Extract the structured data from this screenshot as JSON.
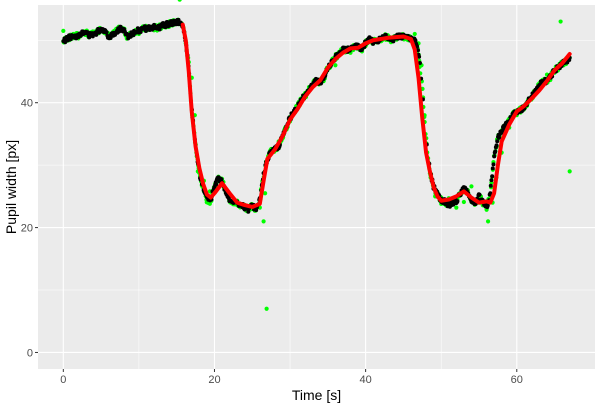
{
  "chart_data": {
    "type": "scatter",
    "title": "",
    "xlabel": "Time [s]",
    "ylabel": "Pupil width [px]",
    "xlim": [
      -3.35,
      70.35
    ],
    "ylim": [
      -2.65,
      55.65
    ],
    "x_ticks": [
      0,
      20,
      40,
      60
    ],
    "y_ticks": [
      0,
      20,
      40
    ],
    "x_tick_labels": [
      "0",
      "20",
      "40",
      "60"
    ],
    "y_tick_labels": [
      "0",
      "20",
      "40"
    ],
    "grid": true,
    "legend": "none",
    "colors": {
      "panel_background": "#ebebeb",
      "grid_major": "#ffffff",
      "raw_points": "#00ff00",
      "filtered_points": "#000000",
      "fitted_line": "#ff0000",
      "tick_text": "#4d4d4d"
    },
    "series": [
      {
        "role": "raw samples",
        "color": "#00ff00",
        "x": [
          0,
          2,
          4,
          6,
          8,
          10,
          12,
          14,
          15.4,
          16.2,
          16.6,
          17.0,
          17.4,
          17.8,
          18.6,
          19.4,
          20.2,
          21.0,
          22.0,
          23.0,
          24.0,
          25.0,
          26.0,
          26.5,
          26.7,
          26.9,
          27.3,
          27.7,
          28.5,
          30,
          32,
          34,
          36,
          38,
          40,
          42,
          44,
          45.5,
          46.5,
          47.0,
          47.4,
          47.8,
          48.2,
          48.6,
          49.2,
          50.0,
          51,
          52,
          53,
          54,
          55,
          56,
          56.2,
          56.8,
          57.3,
          58,
          59,
          60,
          61,
          62,
          63,
          64,
          65,
          65.8,
          66.2,
          66.8,
          67.0
        ],
        "y": [
          51.5,
          50.3,
          51.2,
          50.5,
          51.7,
          51.0,
          51.6,
          52.6,
          56.5,
          49.5,
          46.5,
          44.0,
          38.0,
          29.0,
          27.5,
          25.8,
          27.2,
          27.8,
          25.0,
          23.6,
          23.3,
          23.0,
          23.2,
          21.0,
          25.5,
          7.0,
          31.5,
          32.4,
          33.8,
          37.0,
          41.0,
          43.6,
          46.0,
          48.0,
          49.1,
          50.0,
          50.6,
          50.1,
          51.0,
          49.5,
          46.0,
          38.0,
          31.0,
          28.0,
          25.0,
          23.8,
          24.7,
          23.2,
          24.1,
          26.6,
          24.0,
          23.0,
          21.0,
          24.0,
          28.0,
          32.0,
          36.0,
          38.0,
          39.5,
          41.0,
          43.0,
          44.5,
          45.3,
          53.0,
          46.0,
          46.8,
          29.0
        ]
      },
      {
        "role": "filtered samples",
        "color": "#000000",
        "x": [
          0,
          0.5,
          1,
          1.5,
          2,
          2.5,
          3,
          3.5,
          4,
          4.5,
          5,
          5.5,
          6,
          6.5,
          7,
          7.5,
          8,
          8.5,
          9,
          9.5,
          10,
          10.5,
          11,
          11.5,
          12,
          12.5,
          13,
          13.5,
          14,
          14.5,
          15,
          15.5,
          16,
          16.5,
          17,
          17.5,
          18,
          18.5,
          19,
          19.5,
          20,
          20.5,
          21,
          21.5,
          22,
          22.5,
          23,
          23.5,
          24,
          24.5,
          25,
          25.5,
          26,
          26.5,
          27,
          27.5,
          28,
          28.5,
          29,
          29.5,
          30,
          30.5,
          31,
          31.5,
          32,
          32.5,
          33,
          33.5,
          34,
          34.5,
          35,
          35.5,
          36,
          36.5,
          37,
          37.5,
          38,
          38.5,
          39,
          39.5,
          40,
          40.5,
          41,
          41.5,
          42,
          42.5,
          43,
          43.5,
          44,
          44.5,
          45,
          45.5,
          46,
          46.5,
          47,
          47.5,
          48,
          48.5,
          49,
          49.5,
          50,
          50.5,
          51,
          51.5,
          52,
          52.5,
          53,
          53.5,
          54,
          54.5,
          55,
          55.5,
          56,
          56.5,
          57,
          57.5,
          58,
          58.5,
          59,
          59.5,
          60,
          60.5,
          61,
          61.5,
          62,
          62.5,
          63,
          63.5,
          64,
          64.5,
          65,
          65.5,
          66,
          66.5,
          67
        ],
        "y": [
          49.8,
          50.3,
          50.5,
          50.6,
          50.9,
          51.1,
          51.2,
          50.8,
          51.0,
          51.4,
          51.8,
          51.6,
          50.6,
          50.9,
          51.4,
          51.9,
          51.6,
          50.5,
          51.0,
          51.4,
          51.6,
          51.8,
          51.9,
          51.9,
          52.1,
          51.9,
          52.3,
          52.5,
          52.6,
          52.8,
          52.9,
          52.9,
          51.5,
          47.0,
          39.0,
          33.0,
          28.5,
          26.4,
          24.5,
          24.2,
          26.7,
          27.8,
          27.4,
          25.8,
          24.4,
          24.1,
          23.9,
          23.5,
          23.3,
          22.9,
          23.6,
          22.9,
          24.3,
          28.5,
          31.0,
          32.2,
          32.5,
          33.0,
          34.5,
          36.0,
          37.6,
          38.5,
          39.3,
          40.5,
          41.2,
          42.1,
          43.0,
          43.5,
          43.3,
          44.0,
          45.5,
          46.5,
          47.3,
          47.8,
          48.5,
          48.5,
          48.6,
          48.9,
          49.0,
          48.5,
          49.6,
          50.2,
          49.8,
          49.9,
          50.2,
          50.6,
          50.4,
          50.0,
          50.5,
          50.7,
          50.5,
          50.4,
          50.2,
          50.0,
          48.0,
          42.0,
          34.0,
          29.0,
          26.5,
          25.3,
          24.5,
          24.1,
          23.6,
          24.0,
          24.2,
          25.4,
          26.2,
          25.6,
          24.3,
          23.9,
          25.1,
          24.0,
          23.2,
          25.4,
          31.5,
          34.4,
          35.5,
          36.2,
          37.2,
          38.2,
          38.6,
          38.8,
          39.4,
          40.2,
          41.0,
          42.0,
          42.8,
          43.4,
          43.5,
          44.2,
          45.2,
          45.6,
          46.3,
          46.6,
          47.2
        ]
      },
      {
        "role": "fitted line",
        "color": "#ff0000",
        "x": [
          15.8,
          16.2,
          16.6,
          17.0,
          17.5,
          18.0,
          18.5,
          19.0,
          19.5,
          20,
          21,
          22,
          23,
          24,
          25,
          26,
          26.5,
          27,
          28,
          29,
          30,
          31,
          32,
          33,
          34,
          35,
          36,
          37,
          38,
          39,
          40,
          41,
          42,
          43,
          44,
          45,
          46,
          46.5,
          47,
          47.5,
          48,
          48.5,
          49,
          49.5,
          50,
          51,
          52,
          53,
          54,
          55,
          56,
          56.5,
          57,
          57.5,
          58,
          59,
          60,
          61,
          62,
          63,
          64,
          65,
          66,
          67
        ],
        "y": [
          52.5,
          50.0,
          45.0,
          38.5,
          33.0,
          29.5,
          27.0,
          25.3,
          24.8,
          25.5,
          27.1,
          25.5,
          24.0,
          23.6,
          23.3,
          23.8,
          27.5,
          31.0,
          32.5,
          34.6,
          37.3,
          39.0,
          41.0,
          42.5,
          43.6,
          45.6,
          47.0,
          48.0,
          48.7,
          48.8,
          49.5,
          50.0,
          50.2,
          50.4,
          50.5,
          50.6,
          50.2,
          48.5,
          44.0,
          37.5,
          32.0,
          29.0,
          26.5,
          25.0,
          24.3,
          24.5,
          25.0,
          25.8,
          24.8,
          24.0,
          24.2,
          24.0,
          25.5,
          30.0,
          33.8,
          36.5,
          38.6,
          39.5,
          40.7,
          42.0,
          43.5,
          45.2,
          46.3,
          47.8
        ]
      }
    ]
  }
}
